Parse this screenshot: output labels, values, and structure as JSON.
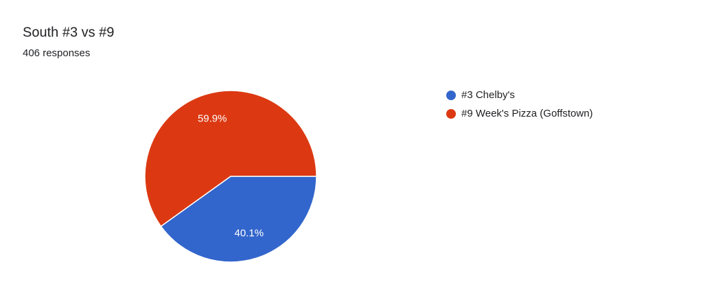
{
  "chart_data": {
    "type": "pie",
    "title": "South #3 vs #9",
    "subtitle": "406 responses",
    "categories": [
      "#3 Chelby's",
      "#9 Week's Pizza (Goffstown)"
    ],
    "values": [
      40.1,
      59.9
    ],
    "value_labels": [
      "40.1%",
      "59.9%"
    ],
    "colors": [
      "#3366cc",
      "#dc3912"
    ],
    "legend": "right"
  }
}
